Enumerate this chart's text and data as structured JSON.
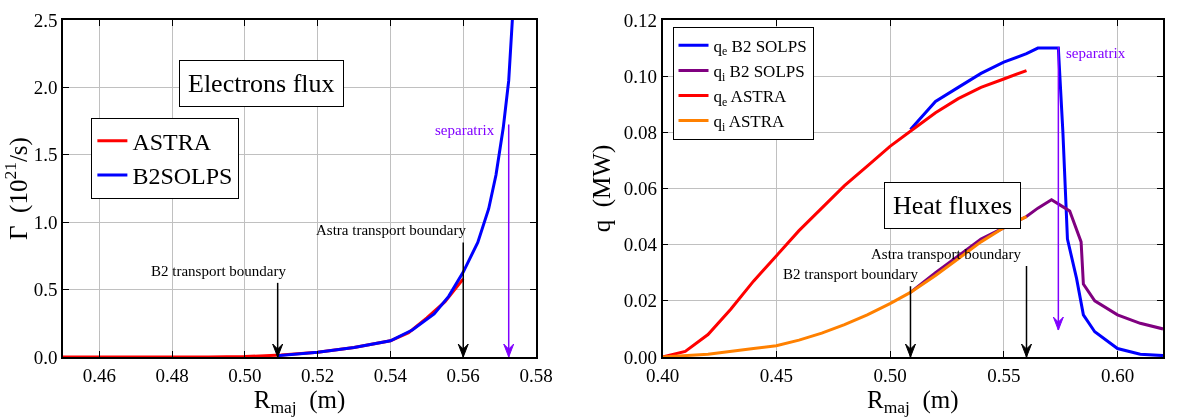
{
  "chart_data": [
    {
      "type": "line",
      "title": "Electrons flux",
      "xlabel": "R$_{maj}$  (m)",
      "ylabel": "Γ  (10$^{21}$/s)",
      "xlim": [
        0.45,
        0.58
      ],
      "ylim": [
        0,
        2.5
      ],
      "xticks": [
        0.46,
        0.48,
        {
          "value": 0.5,
          "label": "0.50"
        },
        0.52,
        0.54,
        0.56,
        0.58
      ],
      "yticks": [
        {
          "value": 0,
          "label": "0.0"
        },
        0.5,
        {
          "value": 1,
          "label": "1.0"
        },
        1.5,
        {
          "value": 2,
          "label": "2.0"
        },
        2.5
      ],
      "grid": true,
      "legend": "top left",
      "series": [
        {
          "name": "ASTRA",
          "color": "#ff0000",
          "x": [
            0.45,
            0.47,
            0.49,
            0.5,
            0.51,
            0.52,
            0.53,
            0.54,
            0.545,
            0.55,
            0.555,
            0.56
          ],
          "values": [
            0,
            0,
            0,
            0.003,
            0.015,
            0.035,
            0.07,
            0.12,
            0.18,
            0.29,
            0.41,
            0.58
          ]
        },
        {
          "name": "B2SOLPS",
          "color": "#0000ff",
          "x": [
            0.509,
            0.52,
            0.53,
            0.54,
            0.546,
            0.552,
            0.556,
            0.56,
            0.564,
            0.567,
            0.569,
            0.571,
            0.5725,
            0.5735
          ],
          "values": [
            0.01,
            0.035,
            0.07,
            0.12,
            0.2,
            0.32,
            0.45,
            0.63,
            0.85,
            1.1,
            1.35,
            1.7,
            2.05,
            2.5
          ]
        }
      ],
      "ref_lines": [
        {
          "axis": "x",
          "value": 0.509,
          "label": "B2 transport boundary",
          "color": "#000000"
        },
        {
          "axis": "x",
          "value": 0.56,
          "label": "Astra transport boundary",
          "color": "#000000"
        },
        {
          "axis": "x",
          "value": 0.5725,
          "label": "separatrix",
          "color": "#8000ff"
        }
      ]
    },
    {
      "type": "line",
      "title": "Heat fluxes",
      "xlabel": "R$_{maj}$  (m)",
      "ylabel": "q  (MW)",
      "xlim": [
        0.4,
        0.62
      ],
      "ylim": [
        0,
        0.12
      ],
      "xticks": [
        {
          "value": 0.4,
          "label": "0.40"
        },
        0.45,
        {
          "value": 0.5,
          "label": "0.50"
        },
        0.55,
        {
          "value": 0.6,
          "label": "0.60"
        }
      ],
      "yticks": [
        {
          "value": 0,
          "label": "0.00"
        },
        0.02,
        0.04,
        0.06,
        0.08,
        {
          "value": 0.1,
          "label": "0.10"
        },
        0.12
      ],
      "grid": true,
      "legend": "top left",
      "series": [
        {
          "name": "q$_{e}$ B2 SOLPS",
          "color": "#0000ff",
          "x": [
            0.509,
            0.52,
            0.53,
            0.54,
            0.55,
            0.56,
            0.565,
            0.574,
            0.576,
            0.578,
            0.582,
            0.585,
            0.59,
            0.6,
            0.61,
            0.62
          ],
          "values": [
            0.081,
            0.091,
            0.096,
            0.101,
            0.105,
            0.108,
            0.11,
            0.11,
            0.08,
            0.042,
            0.028,
            0.015,
            0.009,
            0.003,
            0.001,
            0.0005
          ]
        },
        {
          "name": "q$_{i}$ B2 SOLPS",
          "color": "#800080",
          "x": [
            0.509,
            0.52,
            0.53,
            0.54,
            0.56,
            0.565,
            0.571,
            0.575,
            0.579,
            0.584,
            0.585,
            0.59,
            0.6,
            0.61,
            0.62
          ],
          "values": [
            0.023,
            0.03,
            0.036,
            0.042,
            0.05,
            0.053,
            0.056,
            0.054,
            0.052,
            0.041,
            0.026,
            0.02,
            0.015,
            0.012,
            0.01
          ]
        },
        {
          "name": "q$_{e}$ ASTRA",
          "color": "#ff0000",
          "x": [
            0.4,
            0.41,
            0.42,
            0.43,
            0.44,
            0.45,
            0.46,
            0.47,
            0.48,
            0.49,
            0.5,
            0.51,
            0.52,
            0.53,
            0.54,
            0.55,
            0.56
          ],
          "values": [
            0,
            0.002,
            0.008,
            0.017,
            0.027,
            0.036,
            0.045,
            0.053,
            0.061,
            0.068,
            0.075,
            0.081,
            0.087,
            0.092,
            0.096,
            0.099,
            0.102
          ]
        },
        {
          "name": "q$_{i}$ ASTRA",
          "color": "#ff8000",
          "x": [
            0.4,
            0.42,
            0.44,
            0.45,
            0.46,
            0.47,
            0.48,
            0.49,
            0.5,
            0.509,
            0.52,
            0.53,
            0.54,
            0.55,
            0.56
          ],
          "values": [
            0,
            0.001,
            0.003,
            0.004,
            0.006,
            0.0085,
            0.0115,
            0.015,
            0.019,
            0.023,
            0.029,
            0.035,
            0.041,
            0.046,
            0.05
          ]
        }
      ],
      "ref_lines": [
        {
          "axis": "x",
          "value": 0.509,
          "label": "B2 transport boundary",
          "color": "#000000"
        },
        {
          "axis": "x",
          "value": 0.56,
          "label": "Astra transport boundary",
          "color": "#000000"
        },
        {
          "axis": "x",
          "value": 0.574,
          "label": "separatrix",
          "color": "#8000ff"
        }
      ]
    }
  ]
}
